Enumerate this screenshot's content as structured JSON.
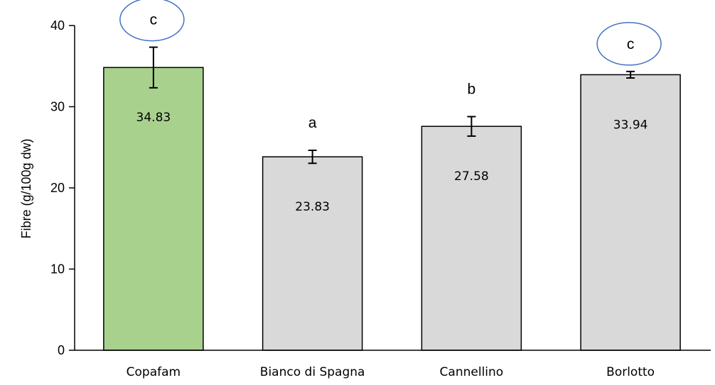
{
  "chart_data": {
    "type": "bar",
    "title": "",
    "xlabel": "",
    "ylabel": "Fibre (g/100g dw)",
    "ylim": [
      0,
      40
    ],
    "yticks": [
      0,
      10,
      20,
      30,
      40
    ],
    "grid": false,
    "legend": "none",
    "categories": [
      "Copafam",
      "Bianco di Spagna",
      "Cannellino",
      "Borlotto"
    ],
    "values": [
      34.83,
      23.83,
      27.58,
      33.94
    ],
    "value_labels": [
      "34.83",
      "23.83",
      "27.58",
      "33.94"
    ],
    "errors": [
      2.5,
      0.8,
      1.2,
      0.4
    ],
    "significance_letters": [
      "c",
      "a",
      "b",
      "c"
    ],
    "circled": [
      true,
      false,
      false,
      true
    ],
    "bar_colors": [
      "#a9d18e",
      "#d9d9d9",
      "#d9d9d9",
      "#d9d9d9"
    ],
    "circle_color": "#4472c4"
  }
}
